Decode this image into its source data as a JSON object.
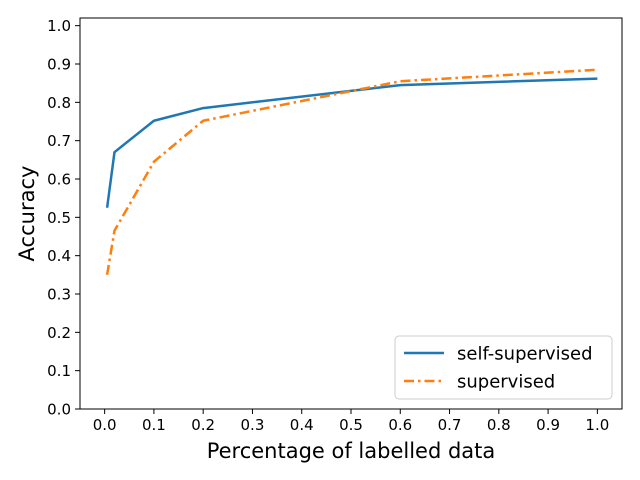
{
  "chart_data": {
    "type": "line",
    "xlabel": "Percentage of labelled data",
    "ylabel": "Accuracy",
    "xlim": [
      -0.05,
      1.05
    ],
    "ylim": [
      0.0,
      1.02
    ],
    "xticks": [
      0.0,
      0.1,
      0.2,
      0.3,
      0.4,
      0.5,
      0.6,
      0.7,
      0.8,
      0.9,
      1.0
    ],
    "xtick_labels": [
      "0.0",
      "0.1",
      "0.2",
      "0.3",
      "0.4",
      "0.5",
      "0.6",
      "0.7",
      "0.8",
      "0.9",
      "1.0"
    ],
    "yticks": [
      0.0,
      0.1,
      0.2,
      0.3,
      0.4,
      0.5,
      0.6,
      0.7,
      0.8,
      0.9,
      1.0
    ],
    "ytick_labels": [
      "0.0",
      "0.1",
      "0.2",
      "0.3",
      "0.4",
      "0.5",
      "0.6",
      "0.7",
      "0.8",
      "0.9",
      "1.0"
    ],
    "grid": false,
    "legend_position": "bottom-right",
    "series": [
      {
        "name": "self-supervised",
        "color": "#1f77b4",
        "style": "solid",
        "x": [
          0.005,
          0.02,
          0.1,
          0.2,
          0.6,
          1.0
        ],
        "y": [
          0.525,
          0.67,
          0.752,
          0.785,
          0.845,
          0.862
        ]
      },
      {
        "name": "supervised",
        "color": "#ff7f0e",
        "style": "dashdot",
        "x": [
          0.005,
          0.02,
          0.1,
          0.2,
          0.6,
          1.0
        ],
        "y": [
          0.35,
          0.465,
          0.645,
          0.752,
          0.855,
          0.885
        ]
      }
    ]
  }
}
